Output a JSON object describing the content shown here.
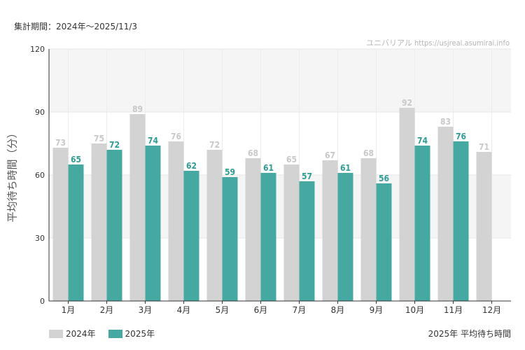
{
  "header": {
    "period_label": "集計期間：2024年〜2025/11/3",
    "watermark": "ユニバリアル https://usjreal.asumirai.info"
  },
  "footer": {
    "subtitle": "2025年 平均待ち時間"
  },
  "chart_data": {
    "type": "bar",
    "ylabel": "平均待ち時間（分）",
    "ylim": [
      0,
      120
    ],
    "yticks": [
      0,
      30,
      60,
      90,
      120
    ],
    "categories": [
      "1月",
      "2月",
      "3月",
      "4月",
      "5月",
      "6月",
      "7月",
      "8月",
      "9月",
      "10月",
      "11月",
      "12月"
    ],
    "series": [
      {
        "name": "2024年",
        "color": "#d3d3d3",
        "label_color": "#c8c8c8",
        "values": [
          73,
          75,
          89,
          76,
          72,
          68,
          65,
          67,
          68,
          92,
          83,
          71
        ]
      },
      {
        "name": "2025年",
        "color": "#45a9a1",
        "label_color": "#2e9c93",
        "values": [
          65,
          72,
          74,
          62,
          59,
          61,
          57,
          61,
          56,
          74,
          76,
          null
        ]
      }
    ],
    "legend_position": "bottom-left",
    "grid": true,
    "band_color": "#f5f5f5"
  }
}
